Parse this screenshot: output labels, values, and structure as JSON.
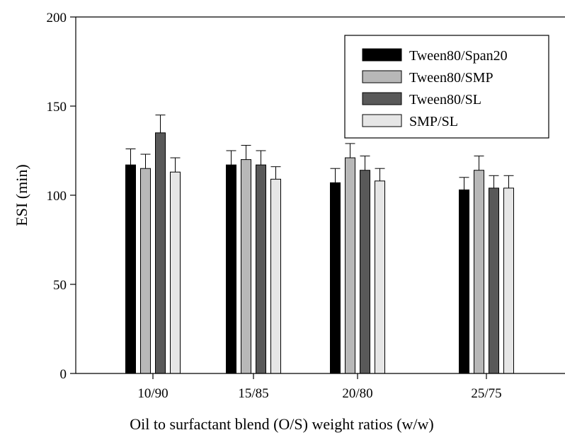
{
  "chart_data": {
    "type": "bar",
    "title": "",
    "xlabel": "Oil to surfactant blend (O/S) weight ratios (w/w)",
    "ylabel": "ESI (min)",
    "categories": [
      "10/90",
      "15/85",
      "20/80",
      "25/75"
    ],
    "ylim": [
      0,
      200
    ],
    "yticks": [
      0,
      50,
      100,
      150,
      200
    ],
    "grid": false,
    "legend_position": "top-right",
    "series": [
      {
        "name": "Tween80/Span20",
        "color": "#000000",
        "values": [
          117,
          117,
          107,
          103
        ],
        "errors": [
          9,
          8,
          8,
          7
        ]
      },
      {
        "name": "Tween80/SMP",
        "color": "#b8b8b8",
        "values": [
          115,
          120,
          121,
          114
        ],
        "errors": [
          8,
          8,
          8,
          8
        ]
      },
      {
        "name": "Tween80/SL",
        "color": "#595959",
        "values": [
          135,
          117,
          114,
          104
        ],
        "errors": [
          10,
          8,
          8,
          7
        ]
      },
      {
        "name": "SMP/SL",
        "color": "#e6e6e6",
        "values": [
          113,
          109,
          108,
          104
        ],
        "errors": [
          8,
          7,
          7,
          7
        ]
      }
    ]
  }
}
